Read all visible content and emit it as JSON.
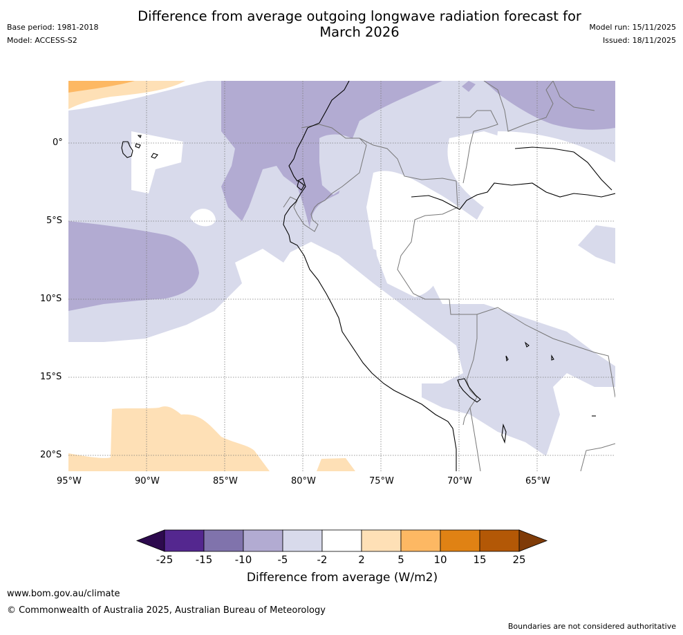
{
  "header": {
    "title_line1": "Difference from average outgoing longwave radiation forecast for",
    "title_line2": "March 2026",
    "base_period": "Base period: 1981-2018",
    "model": "Model: ACCESS-S2",
    "model_run": "Model run: 15/11/2025",
    "issued": "Issued: 18/11/2025"
  },
  "map": {
    "lat_labels": [
      "0°",
      "5°S",
      "10°S",
      "15°S",
      "20°S"
    ],
    "lon_labels": [
      "95°W",
      "90°W",
      "85°W",
      "80°W",
      "75°W",
      "70°W",
      "65°W"
    ]
  },
  "legend": {
    "label": "Difference from average (W/m2)",
    "ticks": [
      "-25",
      "-15",
      "-10",
      "-5",
      "-2",
      "2",
      "5",
      "10",
      "15",
      "25"
    ],
    "colors": {
      "below_minus25": "#2d0a4e",
      "minus25_to_minus15": "#54278f",
      "minus15_to_minus10": "#8073ac",
      "minus10_to_minus5": "#b2abd2",
      "minus5_to_minus2": "#d8daeb",
      "minus2_to_2": "#ffffff",
      "2_to_5": "#fee0b6",
      "5_to_10": "#fdb863",
      "10_to_15": "#e08214",
      "15_to_25": "#b35806",
      "above_25": "#7f3b08"
    }
  },
  "footer": {
    "url": "www.bom.gov.au/climate",
    "copyright": "© Commonwealth of Australia 2025, Australian Bureau of Meteorology",
    "disclaimer": "Boundaries are not considered authoritative"
  }
}
